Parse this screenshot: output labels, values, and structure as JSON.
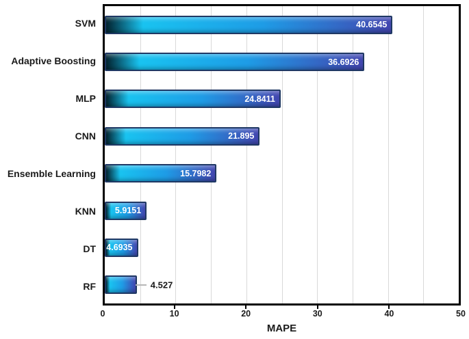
{
  "chart_data": {
    "type": "bar",
    "orientation": "horizontal",
    "title": "",
    "xlabel": "MAPE",
    "ylabel": "",
    "xlim": [
      0,
      50
    ],
    "xticks": [
      0,
      10,
      20,
      30,
      40,
      50
    ],
    "grid_minor_step": 5,
    "grid_on": true,
    "categories": [
      "SVM",
      "Adaptive Boosting",
      "MLP",
      "CNN",
      "Ensemble Learning",
      "KNN",
      "DT",
      "RF"
    ],
    "values": [
      40.6545,
      36.6926,
      24.8411,
      21.895,
      15.7982,
      5.9151,
      4.6935,
      4.527
    ],
    "value_labels": [
      "40.6545",
      "36.6926",
      "24.8411",
      "21.895",
      "15.7982",
      "5.9151",
      "4.6935",
      "4.527"
    ],
    "outside_label_categories": [
      "RF"
    ],
    "colors": {
      "bar_gradient": [
        "#02222e",
        "#19c3f0",
        "#1e9ce6",
        "#4246b0"
      ],
      "bar_border": "#1f3864",
      "grid": "#d9d9d9",
      "plot_border": "#000000",
      "value_label_inside": "#ffffff",
      "value_label_outside": "#1a1a1a"
    }
  }
}
